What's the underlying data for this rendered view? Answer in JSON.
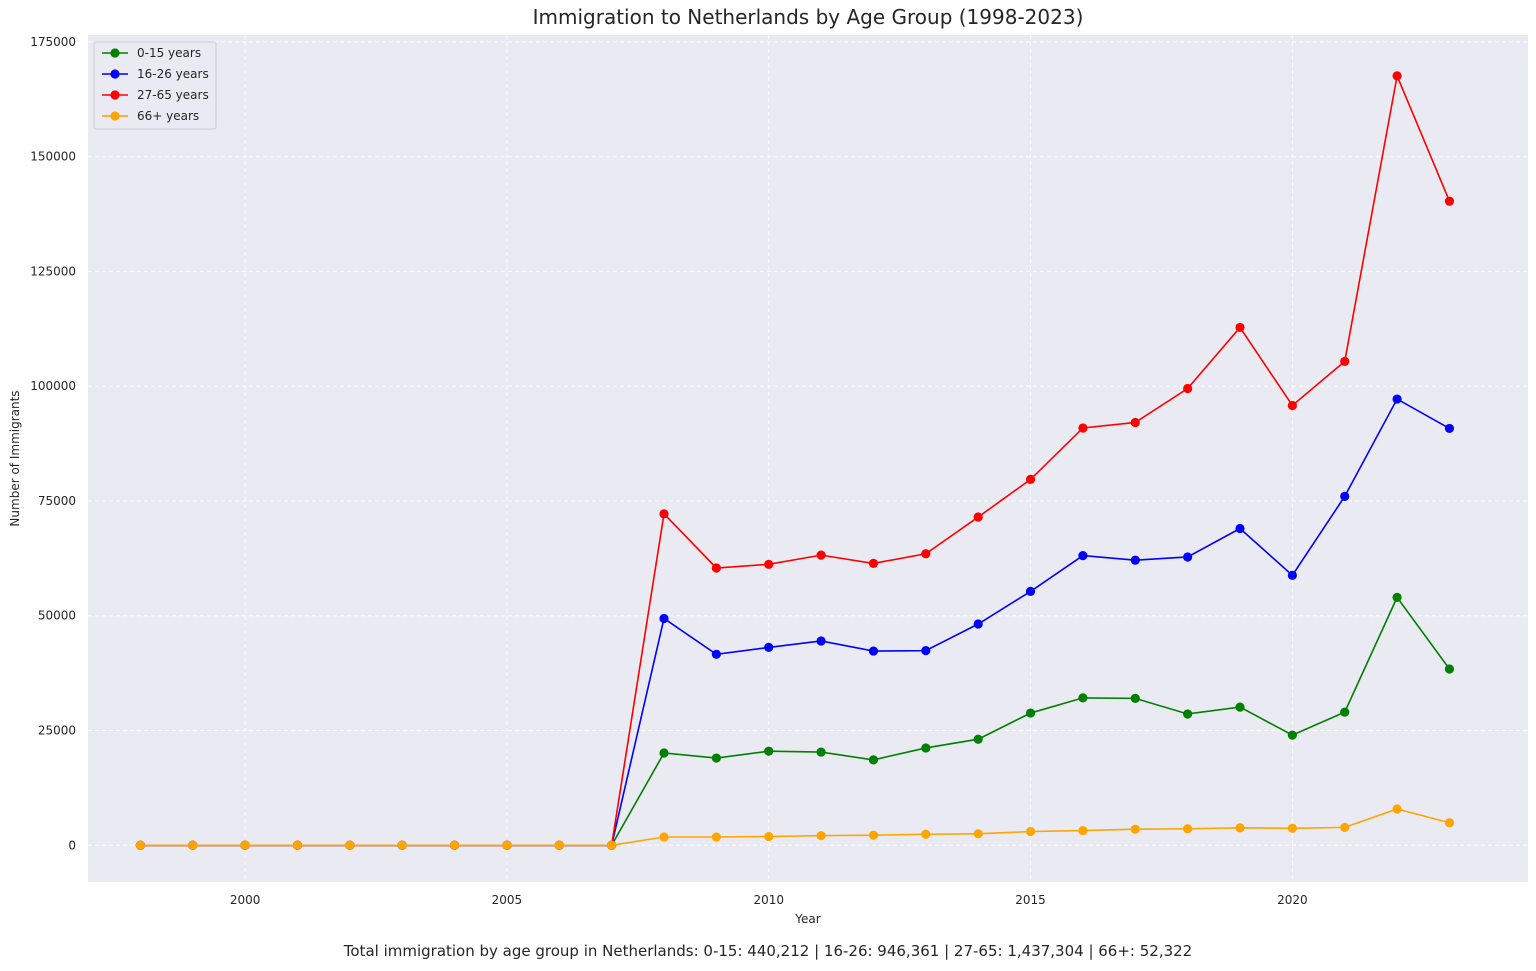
{
  "chart_data": {
    "type": "line",
    "title": "Immigration to Netherlands by Age Group (1998-2023)",
    "xlabel": "Year",
    "ylabel": "Number of Immigrants",
    "xlim": [
      1997,
      2024.5
    ],
    "ylim": [
      -8000,
      176500
    ],
    "x_ticks": [
      2000,
      2005,
      2010,
      2015,
      2020
    ],
    "y_ticks": [
      0,
      25000,
      50000,
      75000,
      100000,
      125000,
      150000,
      175000
    ],
    "grid": true,
    "legend_position": "top-left",
    "x": [
      1998,
      1999,
      2000,
      2001,
      2002,
      2003,
      2004,
      2005,
      2006,
      2007,
      2008,
      2009,
      2010,
      2011,
      2012,
      2013,
      2014,
      2015,
      2016,
      2017,
      2018,
      2019,
      2020,
      2021,
      2022,
      2023
    ],
    "series": [
      {
        "name": "0-15 years",
        "color": "#008000",
        "values": [
          0,
          0,
          0,
          0,
          0,
          0,
          0,
          0,
          0,
          0,
          20100,
          19000,
          20500,
          20300,
          18600,
          21200,
          23100,
          28800,
          32100,
          32000,
          28600,
          30100,
          24000,
          29000,
          54000,
          38400
        ]
      },
      {
        "name": "16-26 years",
        "color": "#0000ff",
        "values": [
          0,
          0,
          0,
          0,
          0,
          0,
          0,
          0,
          0,
          0,
          49400,
          41600,
          43100,
          44500,
          42300,
          42400,
          48200,
          55300,
          63100,
          62100,
          62800,
          69000,
          58800,
          76000,
          97200,
          90800
        ]
      },
      {
        "name": "27-65 years",
        "color": "#ff0000",
        "values": [
          0,
          0,
          0,
          0,
          0,
          0,
          0,
          0,
          0,
          0,
          72200,
          60400,
          61200,
          63200,
          61400,
          63500,
          71500,
          79700,
          90900,
          92100,
          99500,
          112800,
          95800,
          105400,
          167600,
          140300
        ]
      },
      {
        "name": "66+ years",
        "color": "#ffa500",
        "values": [
          0,
          0,
          0,
          0,
          0,
          0,
          0,
          0,
          0,
          0,
          1800,
          1800,
          1900,
          2100,
          2200,
          2400,
          2500,
          3000,
          3200,
          3500,
          3600,
          3800,
          3700,
          3900,
          7900,
          4900
        ]
      }
    ]
  },
  "footer_text": "Total immigration by age group in Netherlands: 0-15: 440,212 | 16-26: 946,361 | 27-65: 1,437,304 | 66+: 52,322"
}
